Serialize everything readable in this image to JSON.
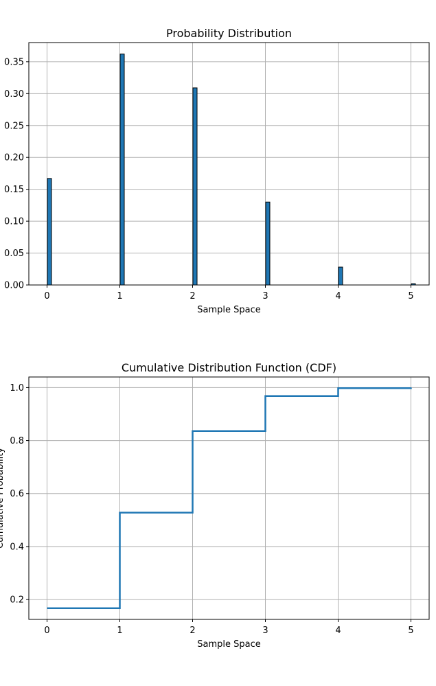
{
  "colors": {
    "bar": "#1f77b4",
    "line": "#1f77b4"
  },
  "chart_data": [
    {
      "type": "bar",
      "title": "Probability Distribution",
      "xlabel": "Sample Space",
      "ylabel": "",
      "x": [
        0,
        1,
        2,
        3,
        4,
        5
      ],
      "values": [
        0.167,
        0.362,
        0.309,
        0.13,
        0.028,
        0.002
      ],
      "xlim": [
        -0.25,
        5.25
      ],
      "ylim": [
        0,
        0.38
      ],
      "xticks": [
        0,
        1,
        2,
        3,
        4,
        5
      ],
      "xtick_labels": [
        "0",
        "1",
        "2",
        "3",
        "4",
        "5"
      ],
      "yticks": [
        0,
        0.05,
        0.1,
        0.15,
        0.2,
        0.25,
        0.3,
        0.35
      ],
      "ytick_labels": [
        "0.00",
        "0.05",
        "0.10",
        "0.15",
        "0.20",
        "0.25",
        "0.30",
        "0.35"
      ],
      "grid": true
    },
    {
      "type": "line",
      "step": "post",
      "title": "Cumulative Distribution Function (CDF)",
      "xlabel": "Sample Space",
      "ylabel": "Cumulative Probability",
      "x": [
        0,
        1,
        2,
        3,
        4,
        5
      ],
      "values": [
        0.167,
        0.528,
        0.836,
        0.968,
        0.998,
        1.0
      ],
      "xlim": [
        -0.25,
        5.25
      ],
      "ylim": [
        0.125,
        1.04
      ],
      "xticks": [
        0,
        1,
        2,
        3,
        4,
        5
      ],
      "xtick_labels": [
        "0",
        "1",
        "2",
        "3",
        "4",
        "5"
      ],
      "yticks": [
        0.2,
        0.4,
        0.6,
        0.8,
        1.0
      ],
      "ytick_labels": [
        "0.2",
        "0.4",
        "0.6",
        "0.8",
        "1.0"
      ],
      "grid": true
    }
  ]
}
